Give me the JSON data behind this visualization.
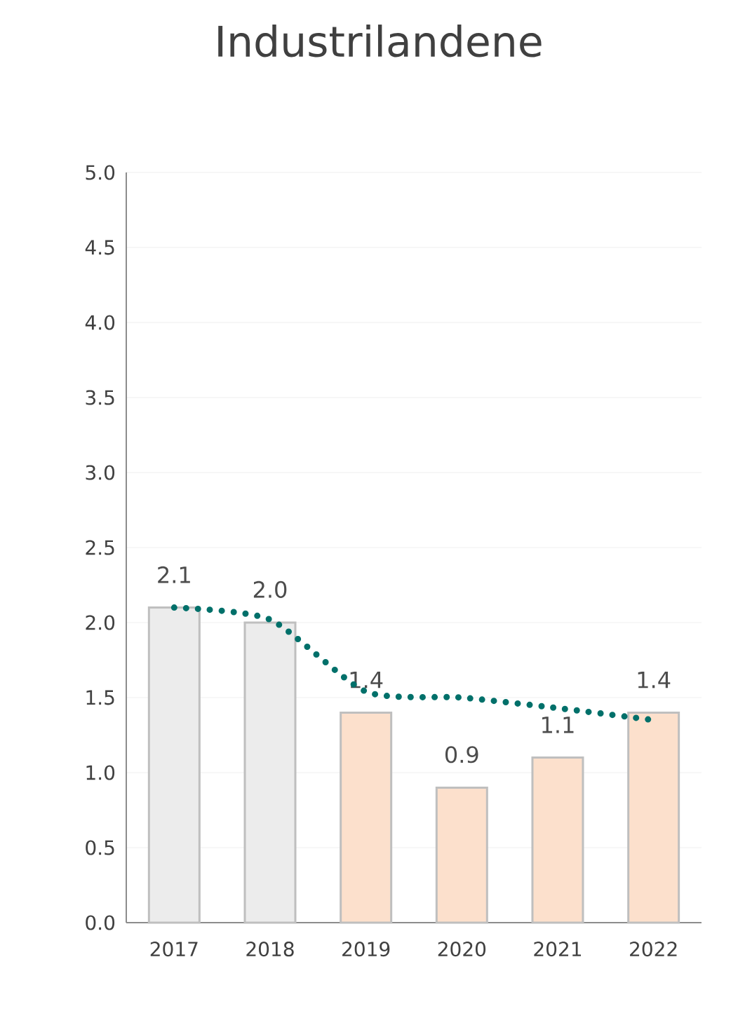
{
  "chart_data": {
    "type": "bar",
    "title": "Industrilandene",
    "categories": [
      "2017",
      "2018",
      "2019",
      "2020",
      "2021",
      "2022"
    ],
    "series": [
      {
        "colors": [
          "#ececec",
          "#ececec",
          "#fce0cc",
          "#fce0cc",
          "#fce0cc",
          "#fce0cc"
        ],
        "values": [
          2.1,
          2.0,
          1.4,
          0.9,
          1.1,
          1.4
        ],
        "value_labels": [
          "2.1",
          "2.0",
          "1.4",
          "0.9",
          "1.1",
          "1.4"
        ]
      },
      {
        "type": "line",
        "color": "#00706a",
        "values": [
          2.1,
          2.02,
          1.54,
          1.5,
          1.43,
          1.35
        ],
        "line_style": "dotted",
        "marker": "none"
      }
    ],
    "ylim": [
      0,
      5
    ],
    "yticks": [
      "0.0",
      "0.5",
      "1.0",
      "1.5",
      "2.0",
      "2.5",
      "3.0",
      "3.5",
      "4.0",
      "4.5",
      "5.0"
    ],
    "grid": "y"
  }
}
